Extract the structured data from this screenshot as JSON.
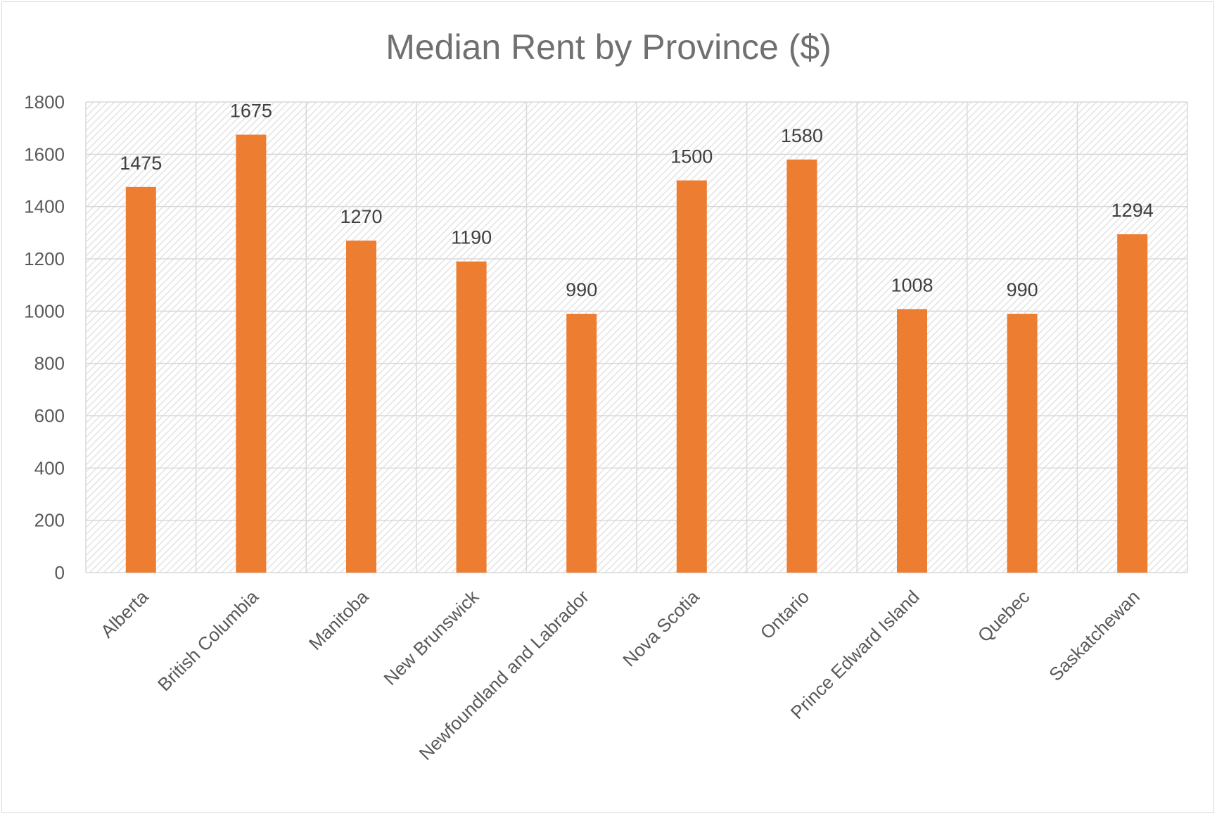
{
  "chart_data": {
    "type": "bar",
    "title": "Median Rent by Province ($)",
    "xlabel": "",
    "ylabel": "",
    "categories": [
      "Alberta",
      "British Columbia",
      "Manitoba",
      "New Brunswick",
      "Newfoundland and Labrador",
      "Nova Scotia",
      "Ontario",
      "Prince Edward Island",
      "Quebec",
      "Saskatchewan"
    ],
    "values": [
      1475,
      1675,
      1270,
      1190,
      990,
      1500,
      1580,
      1008,
      990,
      1294
    ],
    "ylim": [
      0,
      1800
    ],
    "yticks": [
      0,
      200,
      400,
      600,
      800,
      1000,
      1200,
      1400,
      1600,
      1800
    ],
    "grid": true,
    "legend": "none",
    "bar_color": "#ed7d31",
    "gridline_color": "#d9d9d9",
    "plot_pattern": "diagonal-hatch"
  }
}
